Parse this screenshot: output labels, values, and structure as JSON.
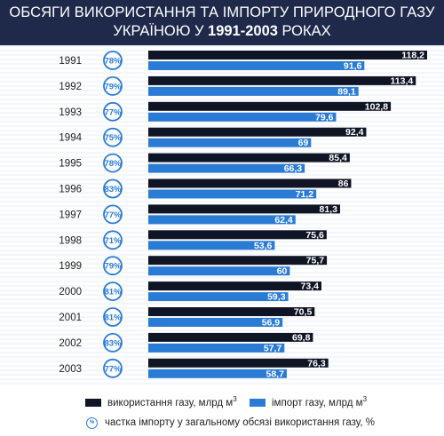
{
  "title": {
    "line1": "ОБСЯГИ ВИКОРИСТАННЯ ТА ІМПОРТУ ПРИРОДНОГО ГАЗУ",
    "line2_prefix": "УКРАЇНОЮ У ",
    "line2_years": "1991-2003",
    "line2_suffix": " РОКАХ"
  },
  "legend": {
    "usage_label": "використання газу, млрд м",
    "import_label": "імпорт газу, млрд м",
    "superscript": "3",
    "share_icon_text": "%",
    "share_label": "частка імпорту у загальному обсязі використання газу, %"
  },
  "colors": {
    "header_bg": "#1f2a4b",
    "usage_bar": "#101525",
    "import_bar": "#2a7bd4",
    "circle": "#2a7bd4"
  },
  "chart_data": {
    "type": "bar",
    "orientation": "horizontal",
    "categories": [
      "1991",
      "1992",
      "1993",
      "1994",
      "1995",
      "1996",
      "1997",
      "1998",
      "1999",
      "2000",
      "2001",
      "2002",
      "2003"
    ],
    "series": [
      {
        "name": "використання газу, млрд м3",
        "values": [
          118.2,
          113.4,
          102.8,
          92.4,
          85.4,
          86,
          81.3,
          75.6,
          75.7,
          73.4,
          70.5,
          69.8,
          76.3
        ]
      },
      {
        "name": "імпорт газу, млрд м3",
        "values": [
          91.6,
          89.1,
          79.6,
          69,
          66.3,
          71.2,
          62.4,
          53.6,
          60,
          59.3,
          56.9,
          57.7,
          58.7
        ]
      }
    ],
    "import_share_pct": [
      78,
      79,
      77,
      75,
      78,
      83,
      77,
      71,
      79,
      81,
      81,
      83,
      77
    ],
    "value_labels_usage": [
      "118,2",
      "113,4",
      "102,8",
      "92,4",
      "85,4",
      "86",
      "81,3",
      "75,6",
      "75,7",
      "73,4",
      "70,5",
      "69,8",
      "76,3"
    ],
    "value_labels_import": [
      "91,6",
      "89,1",
      "79,6",
      "69",
      "66,3",
      "71,2",
      "62,4",
      "53,6",
      "60",
      "59,3",
      "56,9",
      "57,7",
      "58,7"
    ],
    "share_suffix": "%",
    "xlim": [
      0,
      118.2
    ]
  }
}
